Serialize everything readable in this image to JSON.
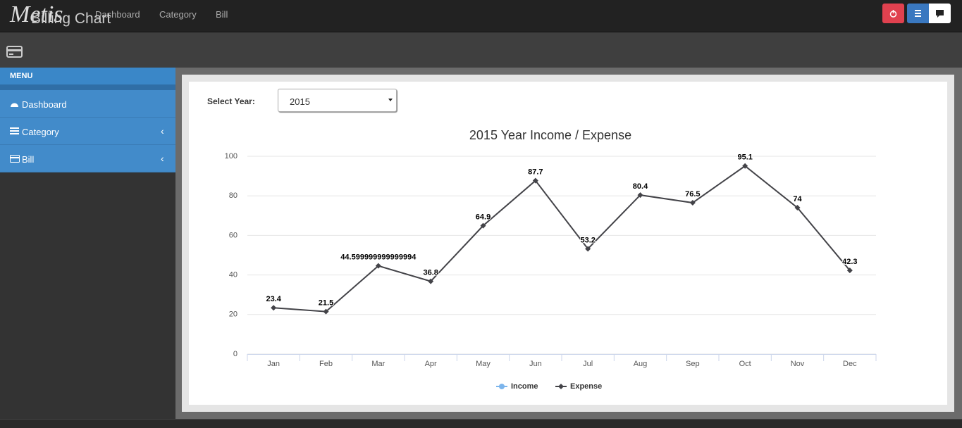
{
  "nav": {
    "brand": "Metis",
    "links": [
      "Dashboard",
      "Category",
      "Bill"
    ]
  },
  "header": {
    "title": "Billing Chart"
  },
  "sidebar": {
    "heading": "MENU",
    "items": [
      "Dashboard",
      "Category",
      "Bill"
    ]
  },
  "filter": {
    "label": "Select Year:",
    "value": "2015"
  },
  "chart_data": {
    "type": "line",
    "title": "2015 Year Income / Expense",
    "categories": [
      "Jan",
      "Feb",
      "Mar",
      "Apr",
      "May",
      "Jun",
      "Jul",
      "Aug",
      "Sep",
      "Oct",
      "Nov",
      "Dec"
    ],
    "series": [
      {
        "name": "Income",
        "color": "#7cb5ec",
        "values": [
          null,
          null,
          null,
          null,
          null,
          null,
          null,
          null,
          null,
          null,
          null,
          null
        ]
      },
      {
        "name": "Expense",
        "color": "#434348",
        "values": [
          23.4,
          21.5,
          44.599999999999994,
          36.8,
          64.9,
          87.7,
          53.2,
          80.4,
          76.5,
          95.1,
          74,
          42.3
        ]
      }
    ],
    "ylim": [
      0,
      100
    ],
    "yticks": [
      0,
      20,
      40,
      60,
      80,
      100
    ],
    "grid": true,
    "legend": "bottom"
  }
}
